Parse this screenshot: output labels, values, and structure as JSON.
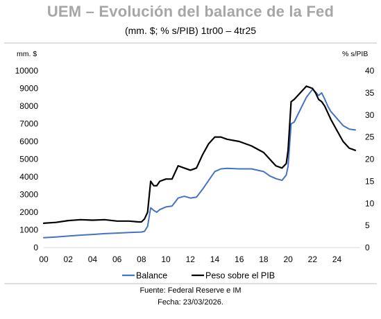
{
  "chart_data": {
    "type": "line",
    "title": "UEM – Evolución del balance de la Fed",
    "subtitle": "(mm. $; % s/PIB) 1tr00 – 4tr25",
    "y_left_unit": "mm. $",
    "y_right_unit": "% s/PIB",
    "x_ticks": [
      "00",
      "02",
      "04",
      "06",
      "08",
      "10",
      "12",
      "14",
      "16",
      "18",
      "20",
      "22",
      "24"
    ],
    "y_left_ticks": [
      "0",
      "1000",
      "2000",
      "3000",
      "4000",
      "5000",
      "6000",
      "7000",
      "8000",
      "9000",
      "10000"
    ],
    "y_right_ticks": [
      "0",
      "5",
      "10",
      "15",
      "20",
      "25",
      "30",
      "35",
      "40"
    ],
    "xlim": [
      2000,
      2025.9
    ],
    "ylim_left": [
      0,
      10000
    ],
    "ylim_right": [
      0,
      40
    ],
    "grid": false,
    "legend_position": "bottom",
    "series": [
      {
        "name": "Balance",
        "axis": "left",
        "color": "#4472c4",
        "x": [
          2000,
          2001,
          2002,
          2003,
          2004,
          2005,
          2006,
          2007,
          2007.75,
          2008.0,
          2008.25,
          2008.5,
          2008.75,
          2009.0,
          2009.25,
          2009.5,
          2010,
          2010.5,
          2011,
          2011.5,
          2012,
          2012.5,
          2013,
          2013.5,
          2014,
          2014.5,
          2015,
          2016,
          2017,
          2018,
          2018.5,
          2019,
          2019.5,
          2019.85,
          2020.0,
          2020.25,
          2020.5,
          2021,
          2021.5,
          2022,
          2022.25,
          2022.5,
          2022.75,
          2023,
          2023.25,
          2023.5,
          2024,
          2024.5,
          2025,
          2025.5
        ],
        "y": [
          560,
          600,
          650,
          700,
          740,
          790,
          820,
          850,
          870,
          880,
          920,
          1200,
          2250,
          2100,
          2000,
          2150,
          2300,
          2350,
          2800,
          2900,
          2800,
          2850,
          3300,
          3800,
          4300,
          4450,
          4480,
          4450,
          4450,
          4300,
          4050,
          3900,
          3800,
          4100,
          4600,
          7000,
          7100,
          7800,
          8500,
          8950,
          8800,
          8600,
          8750,
          8400,
          8000,
          7700,
          7300,
          6900,
          6700,
          6650
        ]
      },
      {
        "name": "Peso sobre el PIB",
        "axis": "right",
        "color": "#000000",
        "x": [
          2000,
          2001,
          2002,
          2003,
          2004,
          2005,
          2006,
          2007,
          2007.75,
          2008.0,
          2008.25,
          2008.5,
          2008.75,
          2009.0,
          2009.25,
          2009.5,
          2010,
          2010.5,
          2011,
          2011.5,
          2012,
          2012.5,
          2013,
          2013.5,
          2014,
          2014.5,
          2015,
          2016,
          2017,
          2018,
          2018.5,
          2019,
          2019.5,
          2019.85,
          2020.0,
          2020.25,
          2020.5,
          2021,
          2021.5,
          2022,
          2022.25,
          2022.5,
          2022.75,
          2023,
          2023.25,
          2023.5,
          2024,
          2024.5,
          2025,
          2025.5
        ],
        "y": [
          5.5,
          5.7,
          6.1,
          6.3,
          6.2,
          6.3,
          6.0,
          6.0,
          5.8,
          5.8,
          6.5,
          8.0,
          15.0,
          14.0,
          14.0,
          15.0,
          15.5,
          15.5,
          18.5,
          18.0,
          17.5,
          18.0,
          21.0,
          23.5,
          25.0,
          25.0,
          24.5,
          24.0,
          23.0,
          21.5,
          20.0,
          18.5,
          18.0,
          19.0,
          22.0,
          33.0,
          33.5,
          35.0,
          36.5,
          36.0,
          35.0,
          33.5,
          33.0,
          32.0,
          30.5,
          29.0,
          26.5,
          24.0,
          22.5,
          22.0
        ]
      }
    ]
  },
  "footer": {
    "source": "Fuente: Federal Reserve e IM",
    "date": "Fecha: 23/03/2026."
  }
}
